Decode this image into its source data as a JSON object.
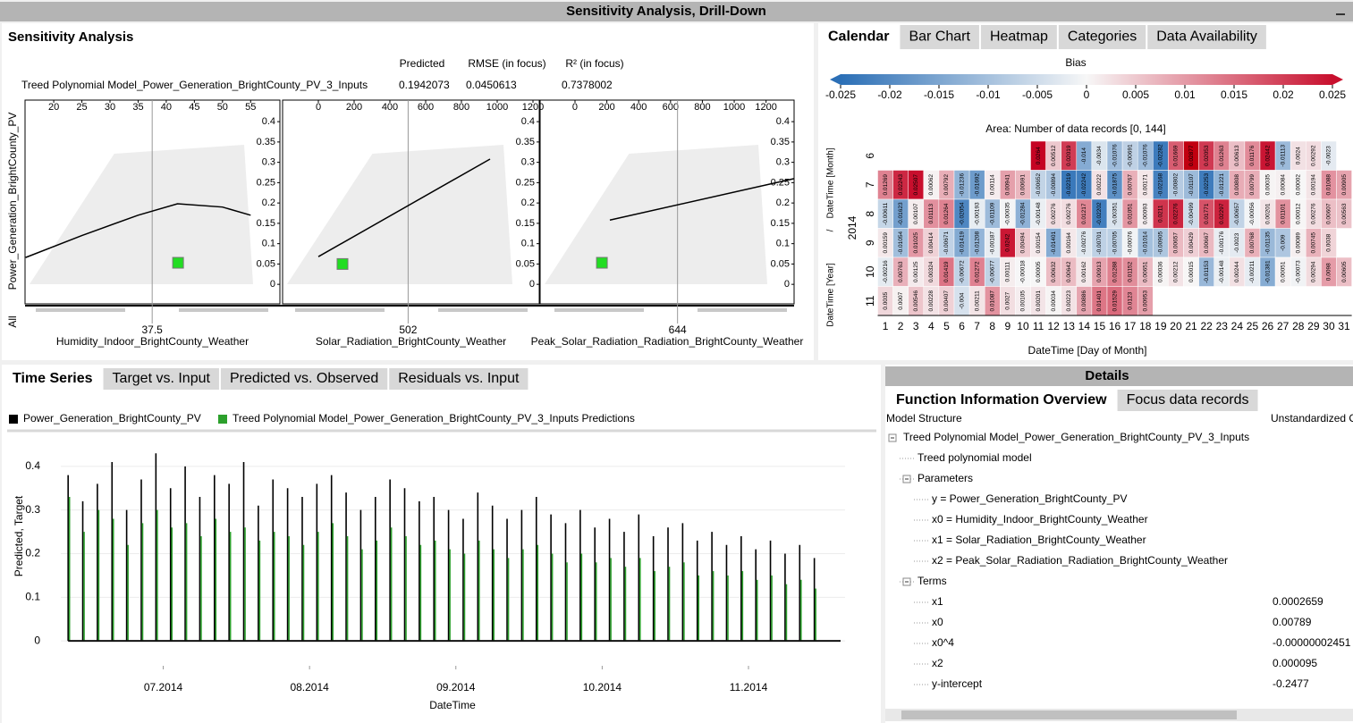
{
  "window_title": "Sensitivity Analysis, Drill-Down",
  "sensitivity": {
    "title": "Sensitivity Analysis",
    "headers": [
      "Predicted",
      "RMSE (in focus)",
      "R² (in focus)"
    ],
    "model": "Treed Polynomial Model_Power_Generation_BrightCounty_PV_3_Inputs",
    "values": [
      0.1942073,
      0.0450613,
      0.7378002
    ],
    "y_label": "Power_Generation_BrightCounty_PV",
    "all_label": "All"
  },
  "calendar_tabs": {
    "tabs": [
      "Calendar",
      "Bar Chart",
      "Heatmap",
      "Categories",
      "Data Availability"
    ],
    "active_tab": 0
  },
  "series_tabs": {
    "tabs": [
      "Time Series",
      "Target vs. Input",
      "Predicted vs. Observed",
      "Residuals vs. Input"
    ],
    "active_tab": 0
  },
  "details": {
    "title": "Details",
    "tabs": [
      "Function Information Overview",
      "Focus data records"
    ],
    "active_tab": 0,
    "columns": [
      "Model Structure",
      "Unstandardized C"
    ],
    "tree": [
      {
        "label": "Treed Polynomial Model_Power_Generation_BrightCounty_PV_3_Inputs",
        "children": [
          {
            "label": "Treed polynomial model"
          },
          {
            "label": "Parameters",
            "children": [
              {
                "label": "y = Power_Generation_BrightCounty_PV"
              },
              {
                "label": "x0 = Humidity_Indoor_BrightCounty_Weather"
              },
              {
                "label": "x1 = Solar_Radiation_BrightCounty_Weather"
              },
              {
                "label": "x2 = Peak_Solar_Radiation_Radiation_BrightCounty_Weather"
              }
            ]
          },
          {
            "label": "Terms",
            "children": [
              {
                "label": "x1",
                "value": "0.0002659"
              },
              {
                "label": "x0",
                "value": "0.00789"
              },
              {
                "label": "x0^4",
                "value": "-0.00000002451"
              },
              {
                "label": "x2",
                "value": "0.000095"
              },
              {
                "label": "y-intercept",
                "value": "-0.2477"
              }
            ]
          }
        ]
      }
    ]
  },
  "chart_data": [
    {
      "type": "scatter",
      "x_label": "Humidity_Indoor_BrightCounty_Weather",
      "focus": 37.5,
      "xlim": [
        14.9,
        60.2
      ],
      "xticks": [
        20,
        25,
        30,
        35,
        40,
        45,
        50,
        55
      ],
      "ylim": [
        -0.048,
        0.453
      ],
      "yticks": [
        0,
        0.05,
        0.1,
        0.15,
        0.2,
        0.25,
        0.3,
        0.35,
        0.4
      ],
      "fit": {
        "color": "#000000",
        "x": [
          15,
          25,
          35,
          42,
          50,
          55
        ],
        "y": [
          0.066,
          0.12,
          0.17,
          0.198,
          0.19,
          0.17
        ]
      },
      "focus_point": {
        "color": "#22dd22",
        "x": 42.1,
        "y": 0.053
      }
    },
    {
      "type": "scatter",
      "x_label": "Solar_Radiation_BrightCounty_Weather",
      "focus": 502,
      "xlim": [
        -200,
        1235
      ],
      "xticks": [
        0,
        200,
        400,
        600,
        800,
        1000,
        1200
      ],
      "ylim": [
        -0.048,
        0.453
      ],
      "yticks": [
        0,
        0.05,
        0.1,
        0.15,
        0.2,
        0.25,
        0.3,
        0.35,
        0.4
      ],
      "fit": {
        "color": "#000000",
        "x": [
          0,
          960
        ],
        "y": [
          0.068,
          0.308
        ]
      },
      "focus_point": {
        "color": "#22dd22",
        "x": 135,
        "y": 0.05
      }
    },
    {
      "type": "scatter",
      "x_label": "Peak_Solar_Radiation_Radiation_BrightCounty_Weather",
      "focus": 644,
      "xlim": [
        -219,
        1376
      ],
      "xticks": [
        0,
        200,
        400,
        600,
        800,
        1000,
        1200
      ],
      "ylim": [
        -0.048,
        0.453
      ],
      "yticks": [
        0,
        0.05,
        0.1,
        0.15,
        0.2,
        0.25,
        0.3,
        0.35,
        0.4
      ],
      "fit": {
        "color": "#000000",
        "x": [
          219,
          1376
        ],
        "y": [
          0.158,
          0.26
        ]
      },
      "focus_point": {
        "color": "#22dd22",
        "x": 169,
        "y": 0.053
      }
    },
    {
      "type": "heatmap",
      "title": "Bias",
      "subtitle": "Area:  Number of data records  [0, 144]",
      "x_label": "DateTime [Day of Month]",
      "y_labels": [
        "DateTime [Month]",
        "/",
        "DateTime [Year]"
      ],
      "year": 2014,
      "clim": [
        -0.025,
        0.025
      ],
      "cticks": [
        -0.025,
        -0.02,
        -0.015,
        -0.01,
        -0.005,
        0,
        0.005,
        0.01,
        0.015,
        0.02,
        0.025
      ],
      "colors": [
        "#2b6fb6",
        "#f7f7f7",
        "#c8102e"
      ],
      "months": [
        6,
        7,
        8,
        9,
        10,
        11
      ],
      "days": [
        1,
        2,
        3,
        4,
        5,
        6,
        7,
        8,
        9,
        10,
        11,
        12,
        13,
        14,
        15,
        16,
        17,
        18,
        19,
        20,
        21,
        22,
        23,
        24,
        25,
        26,
        27,
        28,
        29,
        30,
        31
      ],
      "values": [
        [
          null,
          null,
          null,
          null,
          null,
          null,
          null,
          null,
          null,
          null,
          0.0264,
          0.00512,
          0.02019,
          -0.014,
          -0.0034,
          -0.01076,
          -0.00691,
          -0.01076,
          -0.02282,
          0.01669,
          0.02877,
          0.02053,
          0.01263,
          0.00613,
          0.01176,
          0.02442,
          -0.01113,
          0.0024,
          0.00292,
          -0.0023,
          null
        ],
        [
          0.01269,
          0.02243,
          0.02507,
          0.00062,
          0.00792,
          -0.01236,
          -0.01692,
          0.00114,
          0.00941,
          0.00691,
          -0.00652,
          -0.00894,
          -0.02319,
          -0.02242,
          0.00222,
          -0.01875,
          0.00767,
          0.00171,
          -0.02168,
          -0.00802,
          -0.01107,
          -0.02253,
          -0.01221,
          0.00808,
          0.00799,
          0.00035,
          0.00084,
          2e-05,
          0.00194,
          0.01088,
          0.00905
        ],
        [
          -0.00611,
          -0.01623,
          0.00107,
          0.01113,
          0.01264,
          -0.02054,
          -0.00193,
          -0.01109,
          -0.00035,
          -0.01284,
          -0.00148,
          0.00276,
          0.00276,
          0.01217,
          -0.02202,
          -0.00351,
          0.01051,
          0.00093,
          0.0211,
          0.02276,
          -0.00499,
          0.01771,
          0.02297,
          -0.00657,
          -0.00056,
          0.00201,
          0.01101,
          0.00012,
          0.00276,
          0.00607,
          0.00563
        ],
        [
          0.00159,
          -0.01054,
          0.01025,
          0.00414,
          -0.00671,
          -0.01419,
          -0.01208,
          -0.00187,
          0.0242,
          0.00494,
          0.00154,
          -0.01401,
          0.00164,
          -0.00276,
          -0.00701,
          -0.00705,
          -0.00076,
          -0.01014,
          -0.00905,
          0.00657,
          0.00429,
          0.00667,
          -0.00176,
          -0.0023,
          0.00768,
          -0.01135,
          -0.009,
          0.00089,
          0.00745,
          0.0038,
          null
        ],
        [
          -0.00216,
          0.00763,
          0.00125,
          0.00324,
          0.01419,
          -0.00672,
          0.01272,
          -0.00677,
          0.00111,
          -0.00018,
          5e-05,
          0.00632,
          0.00642,
          0.00162,
          0.00913,
          0.01288,
          0.01152,
          0.00651,
          0.00036,
          0.00212,
          0.00015,
          -0.01153,
          -0.00148,
          0.00244,
          -0.00211,
          -0.01381,
          0.00051,
          -0.00073,
          0.00294,
          0.0098,
          0.00605
        ],
        [
          0.0035,
          0.0007,
          0.00546,
          0.00228,
          0.00407,
          -0.004,
          0.00211,
          0.01087,
          0.0027,
          0.00105,
          0.00201,
          0.00034,
          0.00223,
          0.00886,
          0.01401,
          0.01529,
          0.0123,
          0.00953,
          null,
          null,
          null,
          null,
          null,
          null,
          null,
          null,
          null,
          null,
          null,
          null,
          null
        ]
      ]
    },
    {
      "type": "line",
      "y_label": "Predicted, Target",
      "x_label": "DateTime",
      "xlim": [
        6.3,
        11.66
      ],
      "xticks": [
        {
          "value": 7,
          "label": "07.2014"
        },
        {
          "value": 8,
          "label": "08.2014"
        },
        {
          "value": 9,
          "label": "09.2014"
        },
        {
          "value": 10,
          "label": "10.2014"
        },
        {
          "value": 11,
          "label": "11.2014"
        }
      ],
      "ylim": [
        -0.057,
        0.455
      ],
      "yticks": [
        0,
        0.1,
        0.2,
        0.3,
        0.4
      ],
      "x": [
        6.35,
        6.45,
        6.55,
        6.65,
        6.75,
        6.85,
        6.95,
        7.05,
        7.15,
        7.25,
        7.35,
        7.45,
        7.55,
        7.65,
        7.75,
        7.85,
        7.95,
        8.05,
        8.15,
        8.25,
        8.35,
        8.45,
        8.55,
        8.65,
        8.75,
        8.85,
        8.95,
        9.05,
        9.15,
        9.25,
        9.35,
        9.45,
        9.55,
        9.65,
        9.75,
        9.85,
        9.95,
        10.05,
        10.15,
        10.25,
        10.35,
        10.45,
        10.55,
        10.65,
        10.75,
        10.85,
        10.95,
        11.05,
        11.15,
        11.25,
        11.35,
        11.45
      ],
      "series": [
        {
          "name": "Power_Generation_BrightCounty_PV",
          "color": "#000000",
          "values": [
            0.38,
            0.32,
            0.36,
            0.41,
            0.3,
            0.37,
            0.43,
            0.35,
            0.4,
            0.33,
            0.38,
            0.36,
            0.41,
            0.31,
            0.37,
            0.35,
            0.33,
            0.36,
            0.38,
            0.34,
            0.3,
            0.33,
            0.37,
            0.35,
            0.32,
            0.33,
            0.3,
            0.28,
            0.34,
            0.31,
            0.28,
            0.3,
            0.33,
            0.29,
            0.27,
            0.3,
            0.26,
            0.28,
            0.25,
            0.29,
            0.24,
            0.26,
            0.27,
            0.23,
            0.25,
            0.22,
            0.24,
            0.21,
            0.23,
            0.2,
            0.22,
            0.19
          ]
        },
        {
          "name": "Treed Polynomial Model_Power_Generation_BrightCounty_PV_3_Inputs Predictions",
          "color": "#2ca02c",
          "values": [
            0.33,
            0.25,
            0.3,
            0.28,
            0.22,
            0.27,
            0.3,
            0.26,
            0.27,
            0.24,
            0.28,
            0.25,
            0.26,
            0.23,
            0.25,
            0.24,
            0.22,
            0.25,
            0.27,
            0.24,
            0.21,
            0.23,
            0.26,
            0.24,
            0.22,
            0.23,
            0.21,
            0.2,
            0.23,
            0.21,
            0.19,
            0.21,
            0.22,
            0.2,
            0.18,
            0.2,
            0.18,
            0.19,
            0.17,
            0.19,
            0.16,
            0.17,
            0.18,
            0.15,
            0.16,
            0.15,
            0.16,
            0.14,
            0.15,
            0.13,
            0.14,
            0.12
          ]
        }
      ]
    }
  ]
}
